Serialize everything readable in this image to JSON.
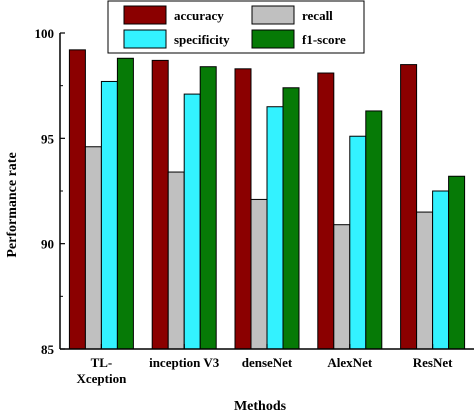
{
  "chart_data": {
    "type": "bar",
    "xlabel": "Methods",
    "ylabel": "Performance rate",
    "ylim": [
      85,
      100
    ],
    "yticks": [
      85,
      90,
      95,
      100
    ],
    "categories": [
      [
        "TL-",
        "Xception"
      ],
      [
        "inception V3"
      ],
      [
        "denseNet"
      ],
      [
        "AlexNet"
      ],
      [
        "ResNet"
      ]
    ],
    "series": [
      {
        "name": "accuracy",
        "color": "#8B0000",
        "values": [
          99.2,
          98.7,
          98.3,
          98.1,
          98.5
        ]
      },
      {
        "name": "recall",
        "color": "#C0C0C0",
        "values": [
          94.6,
          93.4,
          92.1,
          90.9,
          91.5
        ]
      },
      {
        "name": "specificity",
        "color": "#33F2FF",
        "values": [
          97.7,
          97.1,
          96.5,
          95.1,
          92.5
        ]
      },
      {
        "name": "f1-score",
        "color": "#067A06",
        "values": [
          98.8,
          98.4,
          97.4,
          96.3,
          93.2
        ]
      }
    ],
    "legend": {
      "placement": "top-center",
      "columns": 2
    },
    "grid": false
  }
}
